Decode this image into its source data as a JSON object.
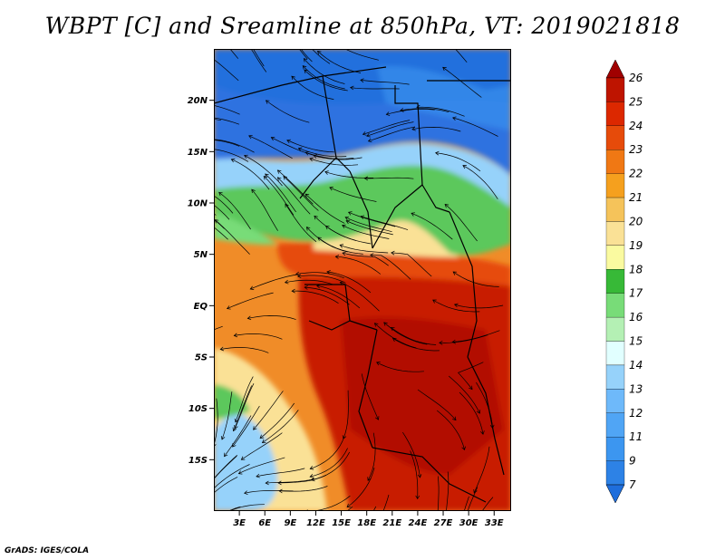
{
  "title": "WBPT [C] and Sreamline at 850hPa, VT: 2019021818",
  "credit": "GrADS: IGES/COLA",
  "map": {
    "lon_range": [
      0,
      35
    ],
    "lat_range": [
      -20,
      25
    ],
    "lat_ticks": [
      "20N",
      "15N",
      "10N",
      "5N",
      "EQ",
      "5S",
      "10S",
      "15S"
    ],
    "lon_ticks": [
      "3E",
      "6E",
      "9E",
      "12E",
      "15E",
      "18E",
      "21E",
      "24E",
      "27E",
      "30E",
      "33E"
    ],
    "zones": [
      {
        "name": "cold-north",
        "color": "#2f72e0"
      },
      {
        "name": "cool-belt",
        "color": "#96d2fa"
      },
      {
        "name": "green-belt",
        "color": "#5cc85c"
      },
      {
        "name": "warm-west",
        "color": "#f08c28"
      },
      {
        "name": "hot-center",
        "color": "#c81e00"
      },
      {
        "name": "tan-south",
        "color": "#fae196"
      }
    ]
  },
  "colorbar": {
    "labels": [
      "7",
      "9",
      "11",
      "12",
      "13",
      "14",
      "15",
      "16",
      "17",
      "18",
      "19",
      "20",
      "21",
      "22",
      "23",
      "24",
      "25",
      "26"
    ],
    "colors": [
      "#1e6edc",
      "#2d82e6",
      "#3c96f0",
      "#50a5f5",
      "#6eb9fa",
      "#96d2fa",
      "#e1ffff",
      "#b4f0b4",
      "#78dc78",
      "#37b937",
      "#fafaa0",
      "#fae196",
      "#f5c35a",
      "#f5a01e",
      "#f07814",
      "#e64b0a",
      "#dc2800",
      "#be1400",
      "#a00000"
    ]
  }
}
